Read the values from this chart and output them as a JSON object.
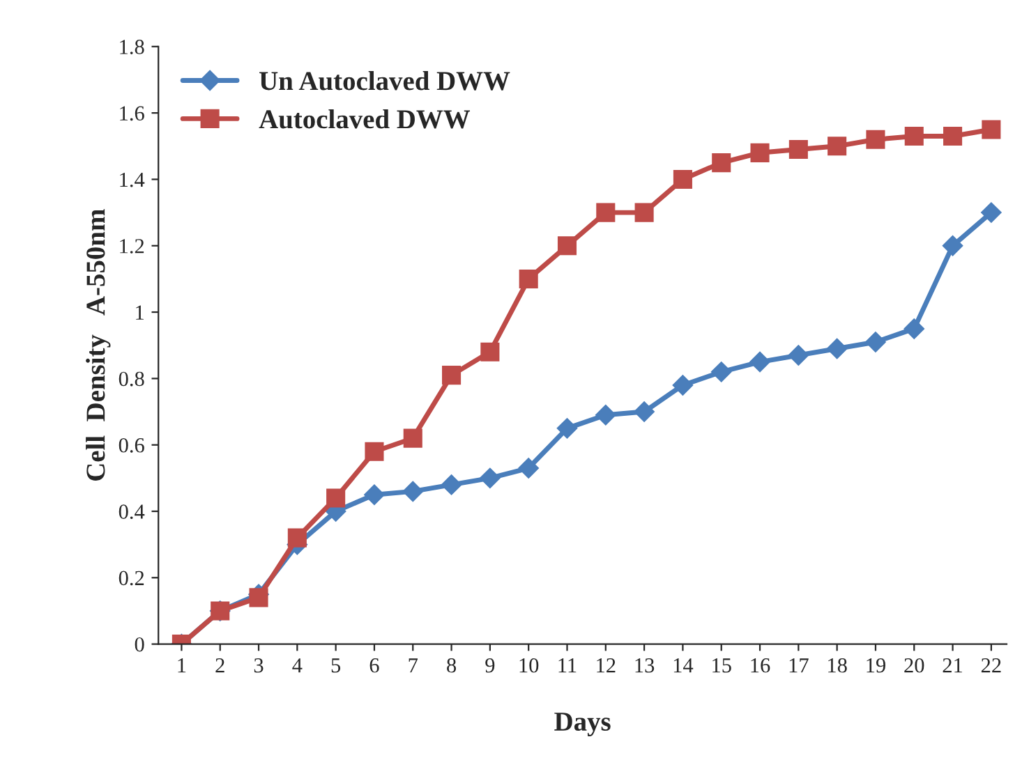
{
  "chart_data": {
    "type": "line",
    "xlabel": "Days",
    "ylabel": "Cell  Density   A-550nm",
    "categories": [
      "1",
      "2",
      "3",
      "4",
      "5",
      "6",
      "7",
      "8",
      "9",
      "10",
      "11",
      "12",
      "13",
      "14",
      "15",
      "16",
      "17",
      "18",
      "19",
      "20",
      "21",
      "22"
    ],
    "series": [
      {
        "name": "Un Autoclaved DWW",
        "color": "#4a7ebb",
        "marker": "diamond",
        "values": [
          0,
          0.1,
          0.15,
          0.3,
          0.4,
          0.45,
          0.46,
          0.48,
          0.5,
          0.53,
          0.65,
          0.69,
          0.7,
          0.78,
          0.82,
          0.85,
          0.87,
          0.89,
          0.91,
          0.95,
          1.2,
          1.3
        ]
      },
      {
        "name": "Autoclaved DWW",
        "color": "#be4b48",
        "marker": "square",
        "values": [
          0,
          0.1,
          0.14,
          0.32,
          0.44,
          0.58,
          0.62,
          0.81,
          0.88,
          1.1,
          1.2,
          1.3,
          1.3,
          1.4,
          1.45,
          1.48,
          1.49,
          1.5,
          1.52,
          1.53,
          1.53,
          1.55
        ]
      }
    ],
    "ylim": [
      0,
      1.8
    ],
    "yticks": [
      0,
      0.2,
      0.4,
      0.6,
      0.8,
      1,
      1.2,
      1.4,
      1.6,
      1.8
    ],
    "grid": false,
    "legend": "top left",
    "line_style": "solid"
  }
}
